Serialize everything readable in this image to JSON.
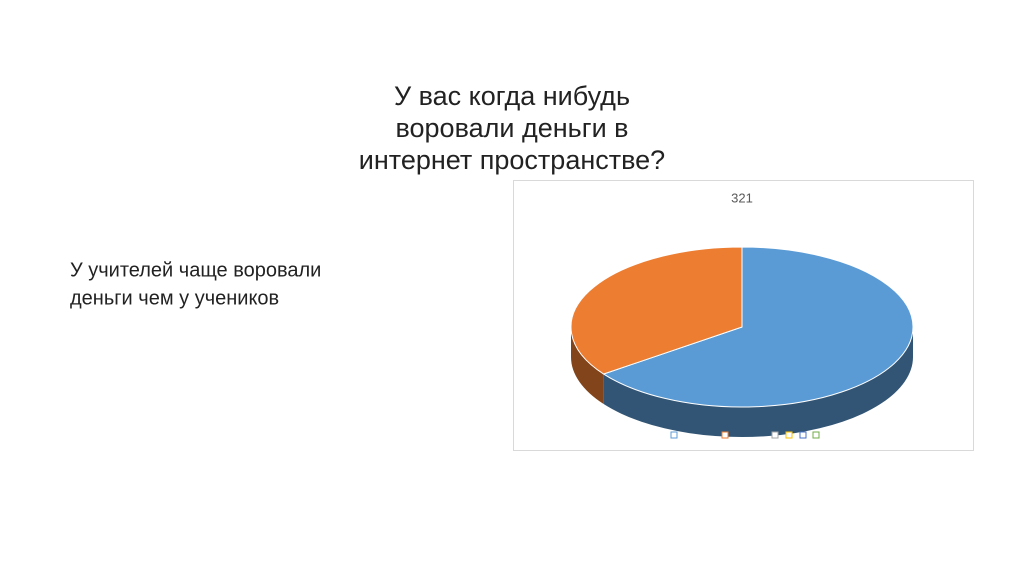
{
  "slide": {
    "title": [
      "У вас когда нибудь",
      "воровали деньги в",
      "интернет пространстве?"
    ],
    "text": [
      "У учителей чаще воровали",
      "деньги чем у учеников"
    ]
  },
  "chart_data": {
    "type": "pie",
    "title": "321",
    "values": [
      65,
      35
    ],
    "colors": [
      "#5b9bd5",
      "#ed7d31"
    ],
    "three_d": true
  }
}
